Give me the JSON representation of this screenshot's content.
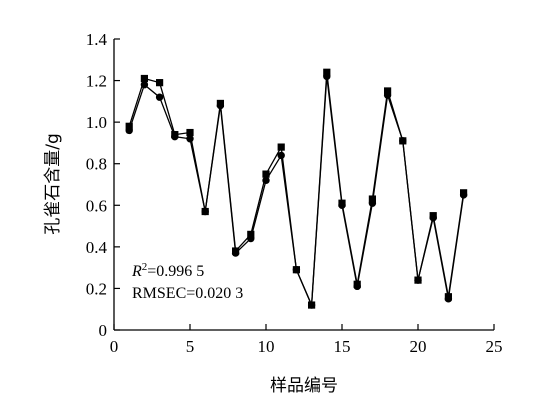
{
  "chart_data": {
    "type": "line",
    "xlabel": "样品编号",
    "ylabel": "孔雀石含量/g",
    "xlim": [
      0,
      25
    ],
    "ylim": [
      0,
      1.4
    ],
    "xticks": [
      0,
      5,
      10,
      15,
      20,
      25
    ],
    "yticks": [
      0,
      0.2,
      0.4,
      0.6,
      0.8,
      1.0,
      1.2,
      1.4
    ],
    "ytick_labels": [
      "0",
      "0.2",
      "0.4",
      "0.6",
      "0.8",
      "1.0",
      "1.2",
      "1.4"
    ],
    "x": [
      1,
      2,
      3,
      4,
      5,
      6,
      7,
      8,
      9,
      10,
      11,
      12,
      13,
      14,
      15,
      16,
      17,
      18,
      19,
      20,
      21,
      22,
      23
    ],
    "series": [
      {
        "marker": "square",
        "values": [
          0.98,
          1.21,
          1.19,
          0.94,
          0.95,
          0.57,
          1.09,
          0.38,
          0.46,
          0.75,
          0.88,
          0.29,
          0.12,
          1.24,
          0.61,
          0.22,
          0.63,
          1.15,
          0.91,
          0.24,
          0.55,
          0.16,
          0.66
        ]
      },
      {
        "marker": "circle",
        "values": [
          0.96,
          1.18,
          1.12,
          0.93,
          0.92,
          0.57,
          1.08,
          0.37,
          0.44,
          0.72,
          0.84,
          0.29,
          0.12,
          1.22,
          0.6,
          0.21,
          0.61,
          1.13,
          0.91,
          0.24,
          0.54,
          0.15,
          0.65
        ]
      }
    ],
    "annotation": {
      "r2_prefix": "R",
      "r2_sup": "2",
      "r2_value": "=0.996 5",
      "rmsec": "RMSEC=0.020 3"
    },
    "grid": false,
    "legend": "none"
  }
}
